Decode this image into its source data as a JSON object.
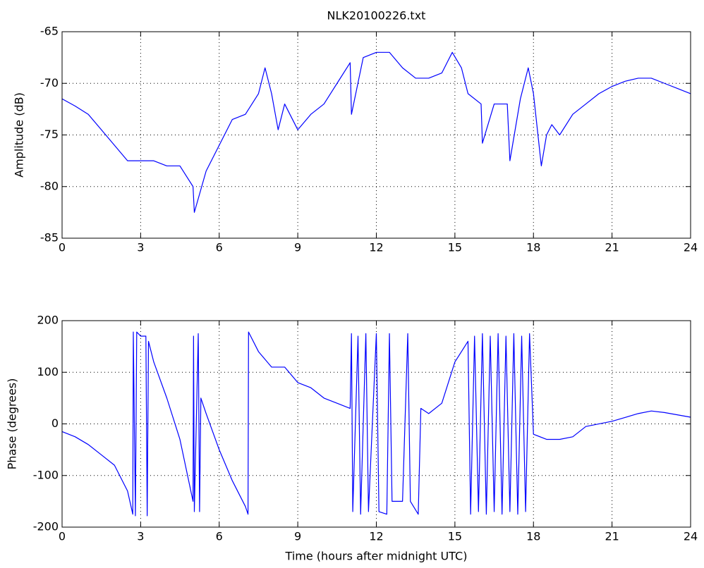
{
  "chart_data": [
    {
      "type": "line",
      "title": "NLK20100226.txt",
      "ylabel": "Amplitude (dB)",
      "color": "#0000ff",
      "grid": true,
      "x": [
        0,
        0.5,
        1,
        1.5,
        2,
        2.5,
        3,
        3.5,
        4,
        4.5,
        5,
        5.05,
        5.5,
        6,
        6.5,
        7,
        7.5,
        7.75,
        8,
        8.25,
        8.5,
        9,
        9.5,
        10,
        10.5,
        11,
        11.05,
        11.5,
        12,
        12.5,
        13,
        13.5,
        14,
        14.5,
        14.9,
        15.25,
        15.5,
        16,
        16.05,
        16.5,
        17,
        17.1,
        17.5,
        17.8,
        18,
        18.3,
        18.5,
        18.7,
        19,
        19.5,
        20,
        20.5,
        21,
        21.5,
        22,
        22.5,
        23,
        23.5,
        24
      ],
      "values": [
        -71.5,
        -72.2,
        -73,
        -74.5,
        -76,
        -77.5,
        -77.5,
        -77.5,
        -78,
        -78,
        -80,
        -82.5,
        -78.5,
        -76,
        -73.5,
        -73,
        -71,
        -68.5,
        -71,
        -74.5,
        -72,
        -74.5,
        -73,
        -72,
        -70,
        -68,
        -73,
        -67.5,
        -67,
        -67,
        -68.5,
        -69.5,
        -69.5,
        -69,
        -67,
        -68.5,
        -71,
        -72,
        -75.8,
        -72,
        -72,
        -77.5,
        -71.5,
        -68.5,
        -71,
        -78,
        -75,
        -74,
        -75,
        -73,
        -72,
        -71,
        -70.3,
        -69.8,
        -69.5,
        -69.5,
        -70,
        -70.5,
        -71
      ],
      "xlim": [
        0,
        24
      ],
      "xticks": [
        0,
        3,
        6,
        9,
        12,
        15,
        18,
        21,
        24
      ],
      "ylim": [
        -85,
        -65
      ],
      "yticks": [
        -85,
        -80,
        -75,
        -70,
        -65
      ]
    },
    {
      "type": "line",
      "xlabel": "Time (hours after midnight UTC)",
      "ylabel": "Phase (degrees)",
      "color": "#0000ff",
      "grid": true,
      "x": [
        0,
        0.5,
        1,
        1.5,
        2,
        2.5,
        2.7,
        2.72,
        2.8,
        2.85,
        3,
        3.2,
        3.25,
        3.3,
        3.5,
        4,
        4.5,
        5,
        5.02,
        5.05,
        5.2,
        5.25,
        5.3,
        5.5,
        6,
        6.5,
        7,
        7.1,
        7.12,
        7.5,
        8,
        8.5,
        9,
        9.5,
        10,
        10.5,
        11,
        11.05,
        11.1,
        11.3,
        11.4,
        11.6,
        11.7,
        12,
        12.1,
        12.4,
        12.5,
        12.6,
        13,
        13.2,
        13.3,
        13.6,
        13.7,
        14,
        14.5,
        15,
        15.5,
        15.6,
        15.75,
        15.9,
        16.05,
        16.2,
        16.35,
        16.5,
        16.65,
        16.8,
        16.95,
        17.1,
        17.25,
        17.4,
        17.55,
        17.7,
        17.85,
        18,
        18.5,
        19,
        19.5,
        20,
        21,
        22,
        22.5,
        23,
        24
      ],
      "values": [
        -15,
        -25,
        -40,
        -60,
        -80,
        -130,
        -175,
        178,
        -178,
        178,
        170,
        170,
        -178,
        160,
        120,
        50,
        -30,
        -150,
        170,
        -170,
        175,
        -170,
        50,
        20,
        -50,
        -110,
        -160,
        -175,
        178,
        140,
        110,
        110,
        80,
        70,
        50,
        40,
        30,
        175,
        -170,
        170,
        -175,
        175,
        -170,
        175,
        -170,
        -175,
        175,
        -150,
        -150,
        175,
        -150,
        -175,
        30,
        20,
        40,
        120,
        160,
        -175,
        170,
        -170,
        175,
        -175,
        170,
        -170,
        175,
        -175,
        170,
        -170,
        175,
        -175,
        170,
        -170,
        175,
        -20,
        -30,
        -30,
        -25,
        -5,
        5,
        20,
        25,
        22,
        13
      ],
      "xlim": [
        0,
        24
      ],
      "xticks": [
        0,
        3,
        6,
        9,
        12,
        15,
        18,
        21,
        24
      ],
      "ylim": [
        -200,
        200
      ],
      "yticks": [
        -200,
        -100,
        0,
        100,
        200
      ]
    }
  ]
}
